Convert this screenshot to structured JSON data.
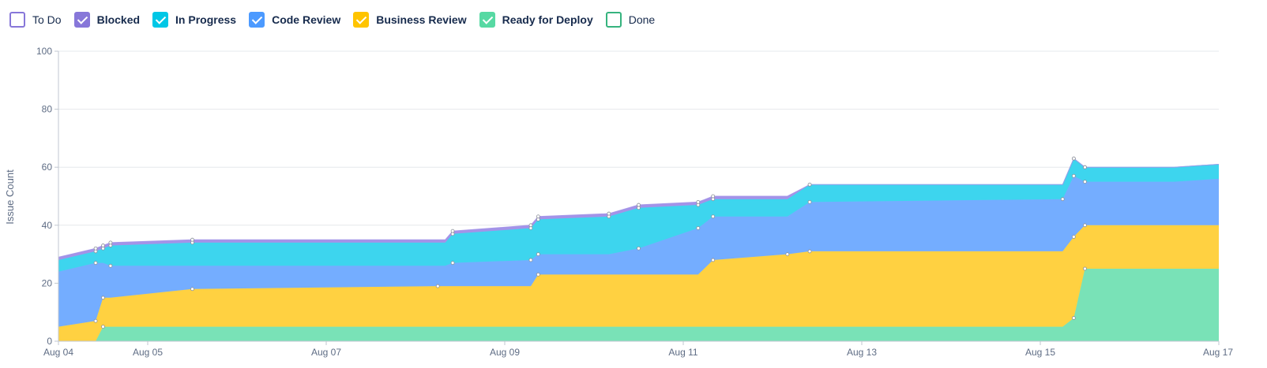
{
  "legend": [
    {
      "label": "To Do",
      "color": "#8777d9",
      "checked": false
    },
    {
      "label": "Blocked",
      "color": "#8777d9",
      "checked": true
    },
    {
      "label": "In Progress",
      "color": "#00c7e6",
      "checked": true
    },
    {
      "label": "Code Review",
      "color": "#4c9aff",
      "checked": true
    },
    {
      "label": "Business Review",
      "color": "#ffc400",
      "checked": true
    },
    {
      "label": "Ready for Deploy",
      "color": "#57d9a3",
      "checked": true
    },
    {
      "label": "Done",
      "color": "#36b37e",
      "checked": false
    }
  ],
  "chart_data": {
    "type": "area",
    "stacked": true,
    "ylabel": "Issue Count",
    "xlabel": "",
    "ylim": [
      0,
      100
    ],
    "yticks": [
      0,
      20,
      40,
      60,
      80,
      100
    ],
    "xlim": [
      "Aug 04",
      "Aug 17"
    ],
    "xticks": [
      "Aug 04",
      "Aug 05",
      "Aug 07",
      "Aug 09",
      "Aug 11",
      "Aug 13",
      "Aug 15",
      "Aug 17"
    ],
    "grid": true,
    "x": [
      "Aug 04",
      "Aug 04 10:00",
      "Aug 04 12:00",
      "Aug 04 14:00",
      "Aug 05 12:00",
      "Aug 08 06:00",
      "Aug 08 08:00",
      "Aug 08 10:00",
      "Aug 09 07:00",
      "Aug 09 09:00",
      "Aug 10 04:00",
      "Aug 10 12:00",
      "Aug 11 04:00",
      "Aug 11 08:00",
      "Aug 12 04:00",
      "Aug 12 10:00",
      "Aug 15 06:00",
      "Aug 15 09:00",
      "Aug 15 12:00",
      "Aug 16 12:00",
      "Aug 17"
    ],
    "series": [
      {
        "name": "Ready for Deploy",
        "color": "#79e2b7",
        "values": [
          0,
          0,
          5,
          5,
          5,
          5,
          5,
          5,
          5,
          5,
          5,
          5,
          5,
          5,
          5,
          5,
          5,
          8,
          25,
          25,
          25
        ]
      },
      {
        "name": "Business Review",
        "color": "#ffd141",
        "values": [
          5,
          7,
          10,
          10,
          13,
          14,
          14,
          14,
          14,
          18,
          18,
          18,
          18,
          23,
          25,
          26,
          26,
          28,
          15,
          15,
          15
        ]
      },
      {
        "name": "Code Review",
        "color": "#74adff",
        "values": [
          19,
          20,
          12,
          11,
          8,
          7,
          7,
          8,
          9,
          7,
          7,
          9,
          16,
          15,
          13,
          17,
          18,
          21,
          15,
          15,
          16
        ]
      },
      {
        "name": "In Progress",
        "color": "#3dd5ee",
        "values": [
          4,
          4,
          5,
          7,
          8,
          8,
          8,
          10,
          11,
          12,
          13,
          14,
          8,
          6,
          6,
          6,
          5,
          6,
          5,
          5,
          5
        ]
      },
      {
        "name": "Blocked",
        "color": "#a393e8",
        "values": [
          1,
          1,
          1,
          1,
          1,
          1,
          1,
          1,
          1,
          1,
          1,
          1,
          1,
          1,
          1,
          0,
          0,
          0,
          0,
          0,
          0
        ]
      }
    ]
  }
}
